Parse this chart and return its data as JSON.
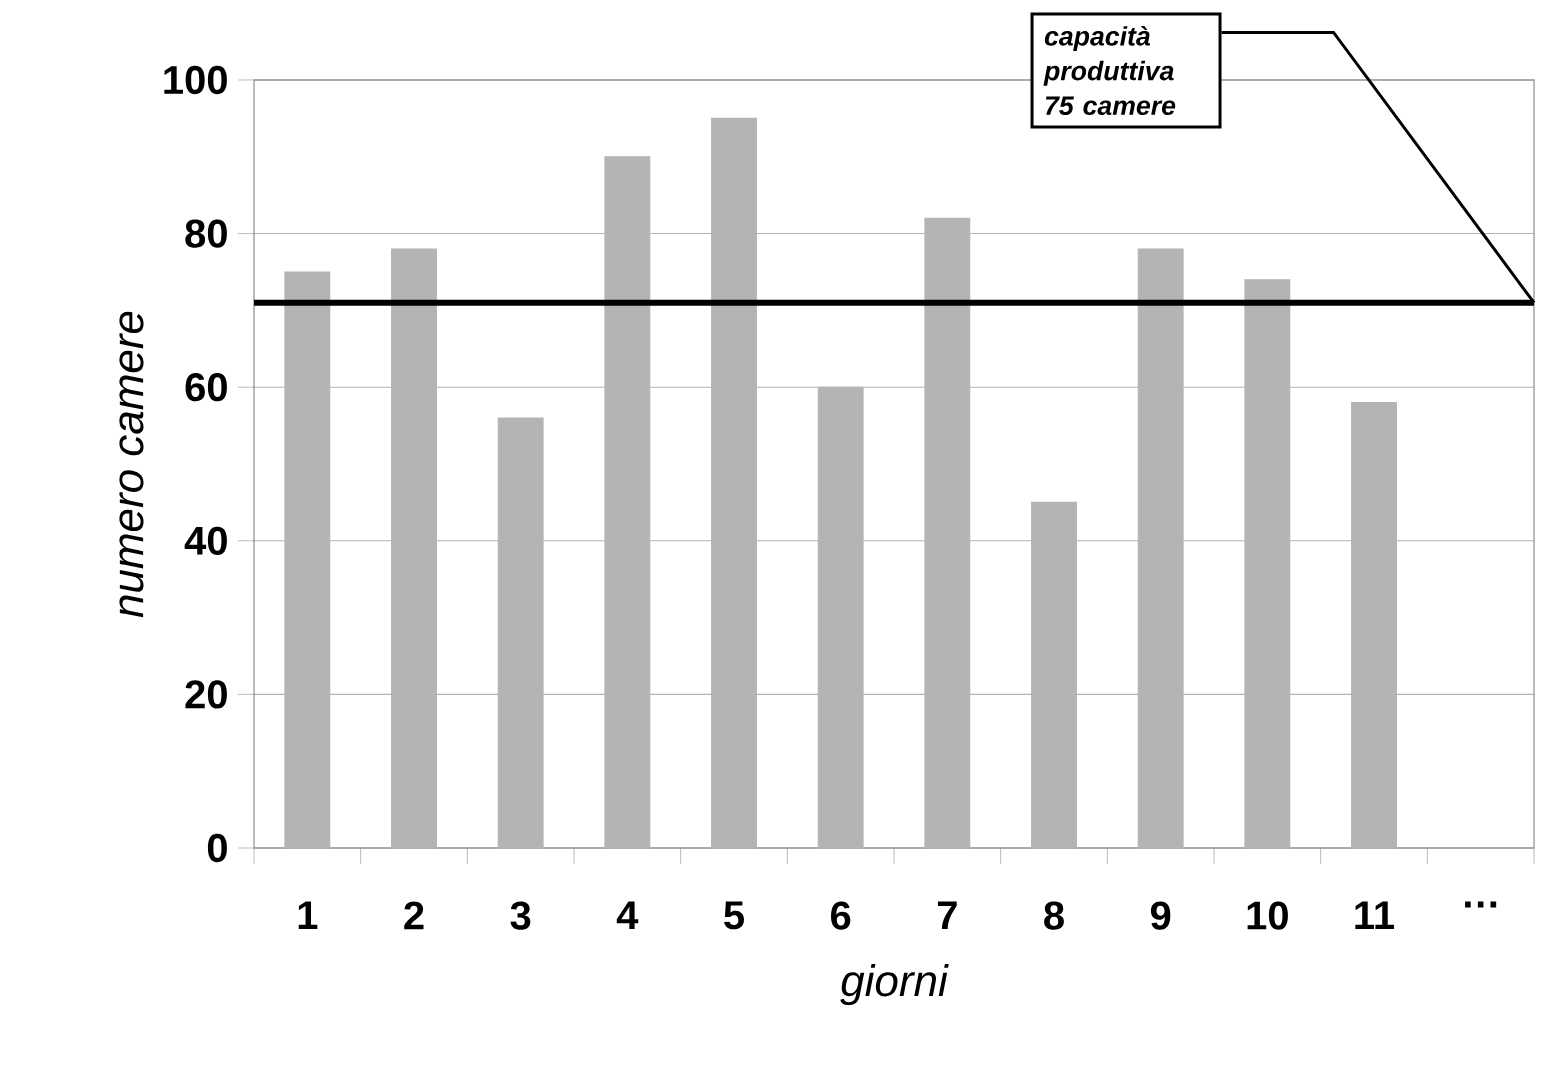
{
  "chart_data": {
    "type": "bar",
    "xlabel": "giorni",
    "ylabel": "numero camere",
    "categories": [
      "1",
      "2",
      "3",
      "4",
      "5",
      "6",
      "7",
      "8",
      "9",
      "10",
      "11",
      "…"
    ],
    "values": [
      75,
      78,
      56,
      90,
      95,
      60,
      82,
      45,
      78,
      74,
      58,
      null
    ],
    "color": "#b4b4b4",
    "ylim": [
      0,
      100
    ],
    "yticks": [
      0,
      20,
      40,
      60,
      80,
      100
    ],
    "grid": "y",
    "ref_lines": [
      {
        "axis": "y",
        "value": 71,
        "label": "capacità produttiva 75 camere",
        "color": "#000000"
      }
    ]
  }
}
